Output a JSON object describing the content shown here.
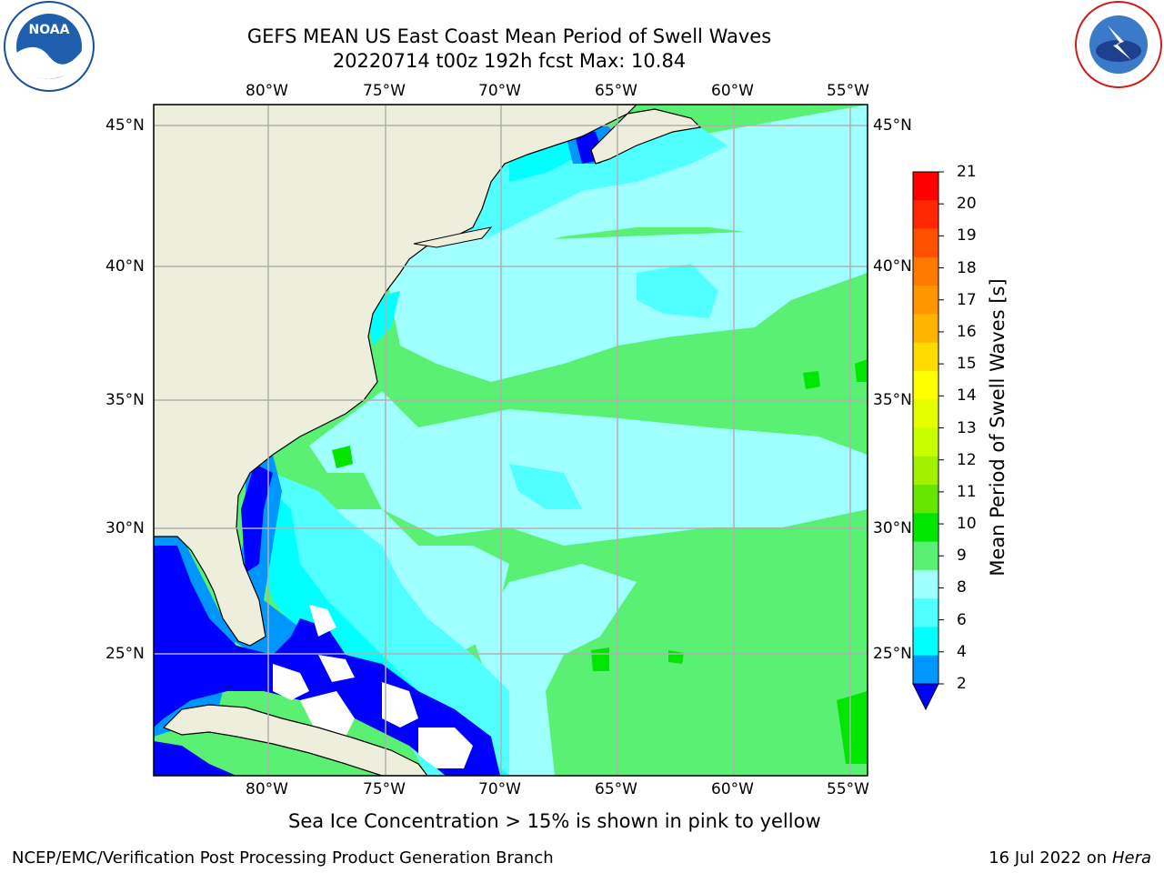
{
  "header": {
    "title_line1": "GEFS MEAN US East Coast Mean Period of Swell Waves",
    "title_line2": "20220714 t00z 192h fcst   Max: 10.84"
  },
  "logos": {
    "left_text": "NOAA",
    "left_ring_text": "NATIONAL OCEANIC AND ATMOSPHERIC ADMINISTRATION · U.S. DEPARTMENT OF COMMERCE",
    "right_ring_text": "NATIONAL WEATHER SERVICE"
  },
  "map": {
    "lon_labels": [
      "80°W",
      "75°W",
      "70°W",
      "65°W",
      "60°W",
      "55°W"
    ],
    "lat_labels": [
      "45°N",
      "40°N",
      "35°N",
      "30°N",
      "25°N"
    ],
    "colors": {
      "land": "#eeeedd",
      "coast": "#000000",
      "grid": "#b0b0b0",
      "ice_free_missing": "#ffffff"
    }
  },
  "colorbar": {
    "title": "Mean Period of Swell Waves [s]",
    "ticks": [
      "21",
      "20",
      "19",
      "18",
      "17",
      "16",
      "15",
      "14",
      "13",
      "12",
      "11",
      "10",
      "9",
      "8",
      "6",
      "4",
      "2"
    ],
    "colors": [
      "#ff0000",
      "#ff2800",
      "#ff5000",
      "#ff7800",
      "#ff9600",
      "#ffb400",
      "#ffdc00",
      "#ffff00",
      "#e6ff00",
      "#c8ff00",
      "#a0f000",
      "#64e600",
      "#00e600",
      "#5af073",
      "#a0ffff",
      "#50ffff",
      "#00ffff",
      "#0096ff",
      "#0000ff"
    ]
  },
  "footer": {
    "note": "Sea Ice Concentration > 15% is shown in pink to yellow",
    "left": "NCEP/EMC/Verification Post Processing Product Generation Branch",
    "right_date": "16 Jul 2022 on ",
    "right_host": "Hera"
  }
}
